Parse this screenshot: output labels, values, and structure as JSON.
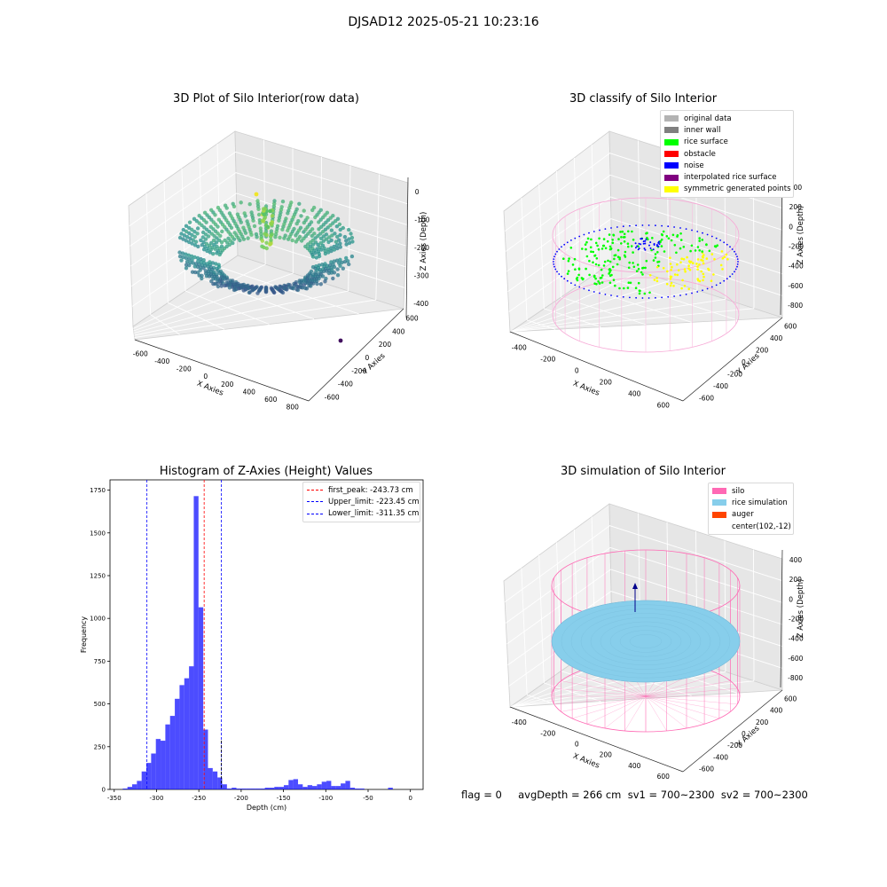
{
  "suptitle": "DJSAD12 2025-05-21 10:23:16",
  "footer": "flag = 0     avgDepth = 266 cm  sv1 = 700~2300  sv2 = 700~2300",
  "chart_data": [
    {
      "type": "scatter3d",
      "title": "3D Plot of Silo Interior(row data)",
      "xlabel": "X Axies",
      "ylabel": "Y Axies",
      "zlabel": "Z Axies (Depth)",
      "xticks": [
        "-600",
        "-400",
        "-200",
        "0",
        "200",
        "400",
        "600",
        "800"
      ],
      "yticks": [
        "-600",
        "-400",
        "-200",
        "0",
        "200",
        "400",
        "600"
      ],
      "zticks": [
        "-400",
        "-300",
        "-200",
        "-100",
        "0"
      ],
      "xlim": [
        -700,
        900
      ],
      "ylim": [
        -700,
        700
      ],
      "zlim": [
        -450,
        20
      ],
      "colormap": "viridis"
    },
    {
      "type": "scatter3d",
      "title": "3D classify of Silo Interior",
      "xlabel": "X Axies",
      "ylabel": "Y Axies",
      "zlabel": "Z Axies (Depth)",
      "xticks": [
        "-400",
        "-200",
        "0",
        "200",
        "400",
        "600"
      ],
      "yticks": [
        "-600",
        "-400",
        "-200",
        "0",
        "200",
        "400",
        "600"
      ],
      "zticks": [
        "-800",
        "-600",
        "-400",
        "-200",
        "0",
        "200",
        "400"
      ],
      "legend": [
        {
          "label": "original data",
          "color": "#b3b3b3"
        },
        {
          "label": "inner wall",
          "color": "#808080"
        },
        {
          "label": "rice surface",
          "color": "#00ff00"
        },
        {
          "label": "obstacle",
          "color": "#ff0000"
        },
        {
          "label": "noise",
          "color": "#0000ff"
        },
        {
          "label": "interpolated rice surface",
          "color": "#800080"
        },
        {
          "label": "symmetric generated points",
          "color": "#ffff00"
        }
      ],
      "legend_position": "top-right"
    },
    {
      "type": "bar",
      "title": "Histogram of Z-Axies (Height) Values",
      "xlabel": "Depth (cm)",
      "ylabel": "Frequency",
      "xlim": [
        -355,
        15
      ],
      "ylim": [
        0,
        1810
      ],
      "xticks": [
        -350,
        -300,
        -250,
        -200,
        -150,
        -100,
        -50,
        0
      ],
      "yticks": [
        0,
        250,
        500,
        750,
        1000,
        1250,
        1500,
        1750
      ],
      "bin_width": 5.6,
      "bin_edges_start": -340,
      "values": [
        5,
        15,
        30,
        50,
        105,
        155,
        210,
        295,
        285,
        380,
        430,
        530,
        610,
        650,
        720,
        1715,
        1065,
        350,
        125,
        105,
        70,
        30,
        5,
        10,
        5,
        5,
        5,
        5,
        5,
        5,
        10,
        10,
        15,
        15,
        25,
        55,
        60,
        30,
        15,
        25,
        20,
        30,
        45,
        50,
        20,
        20,
        35,
        50,
        10,
        5,
        5,
        0,
        0,
        0,
        0,
        0,
        10
      ],
      "color": "#0000ff",
      "reference_lines": [
        {
          "label": "first_peak: -243.73 cm",
          "x": -243.73,
          "color": "#ff0000"
        },
        {
          "label": "Upper_limit: -223.45 cm",
          "x": -223.45,
          "color": "#0000ff"
        },
        {
          "label": "Lower_limit: -311.35 cm",
          "x": -311.35,
          "color": "#0000ff"
        }
      ],
      "legend_position": "top-right"
    },
    {
      "type": "surface3d",
      "title": "3D simulation of Silo Interior",
      "xlabel": "X Axies",
      "ylabel": "Y Axies",
      "zlabel": "Z Axies (Depth)",
      "xticks": [
        "-400",
        "-200",
        "0",
        "200",
        "400",
        "600"
      ],
      "yticks": [
        "-600",
        "-400",
        "-200",
        "0",
        "200",
        "400",
        "600"
      ],
      "zticks": [
        "-800",
        "-600",
        "-400",
        "-200",
        "0",
        "200",
        "400"
      ],
      "legend": [
        {
          "label": "silo",
          "color": "#ff69b4"
        },
        {
          "label": "rice simulation",
          "color": "#87ceeb"
        },
        {
          "label": "auger",
          "color": "#ff4500"
        },
        {
          "label": "center(102,-12)",
          "color": ""
        }
      ],
      "legend_position": "top-right"
    }
  ]
}
